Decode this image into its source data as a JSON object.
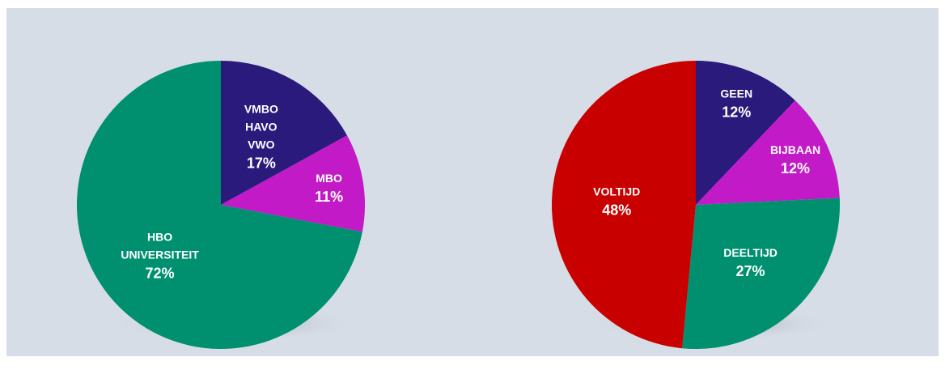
{
  "chart_data": [
    {
      "type": "pie",
      "categories": [
        [
          "VMBO",
          "HAVO",
          "VWO"
        ],
        [
          "MBO"
        ],
        [
          "HBO",
          "UNIVERSITEIT"
        ]
      ],
      "values": [
        17,
        11,
        72
      ],
      "value_labels": [
        "17%",
        "11%",
        "72%"
      ],
      "colors": [
        "#2a1a7c",
        "#c21ac6",
        "#00906f"
      ]
    },
    {
      "type": "pie",
      "categories": [
        [
          "GEEN"
        ],
        [
          "BIJBAAN"
        ],
        [
          "DEELTIJD"
        ],
        [
          "VOLTIJD"
        ]
      ],
      "values": [
        12,
        12,
        27,
        48
      ],
      "value_labels": [
        "12%",
        "12%",
        "27%",
        "48%"
      ],
      "colors": [
        "#2a1a7c",
        "#c21ac6",
        "#00906f",
        "#c80000"
      ]
    }
  ]
}
